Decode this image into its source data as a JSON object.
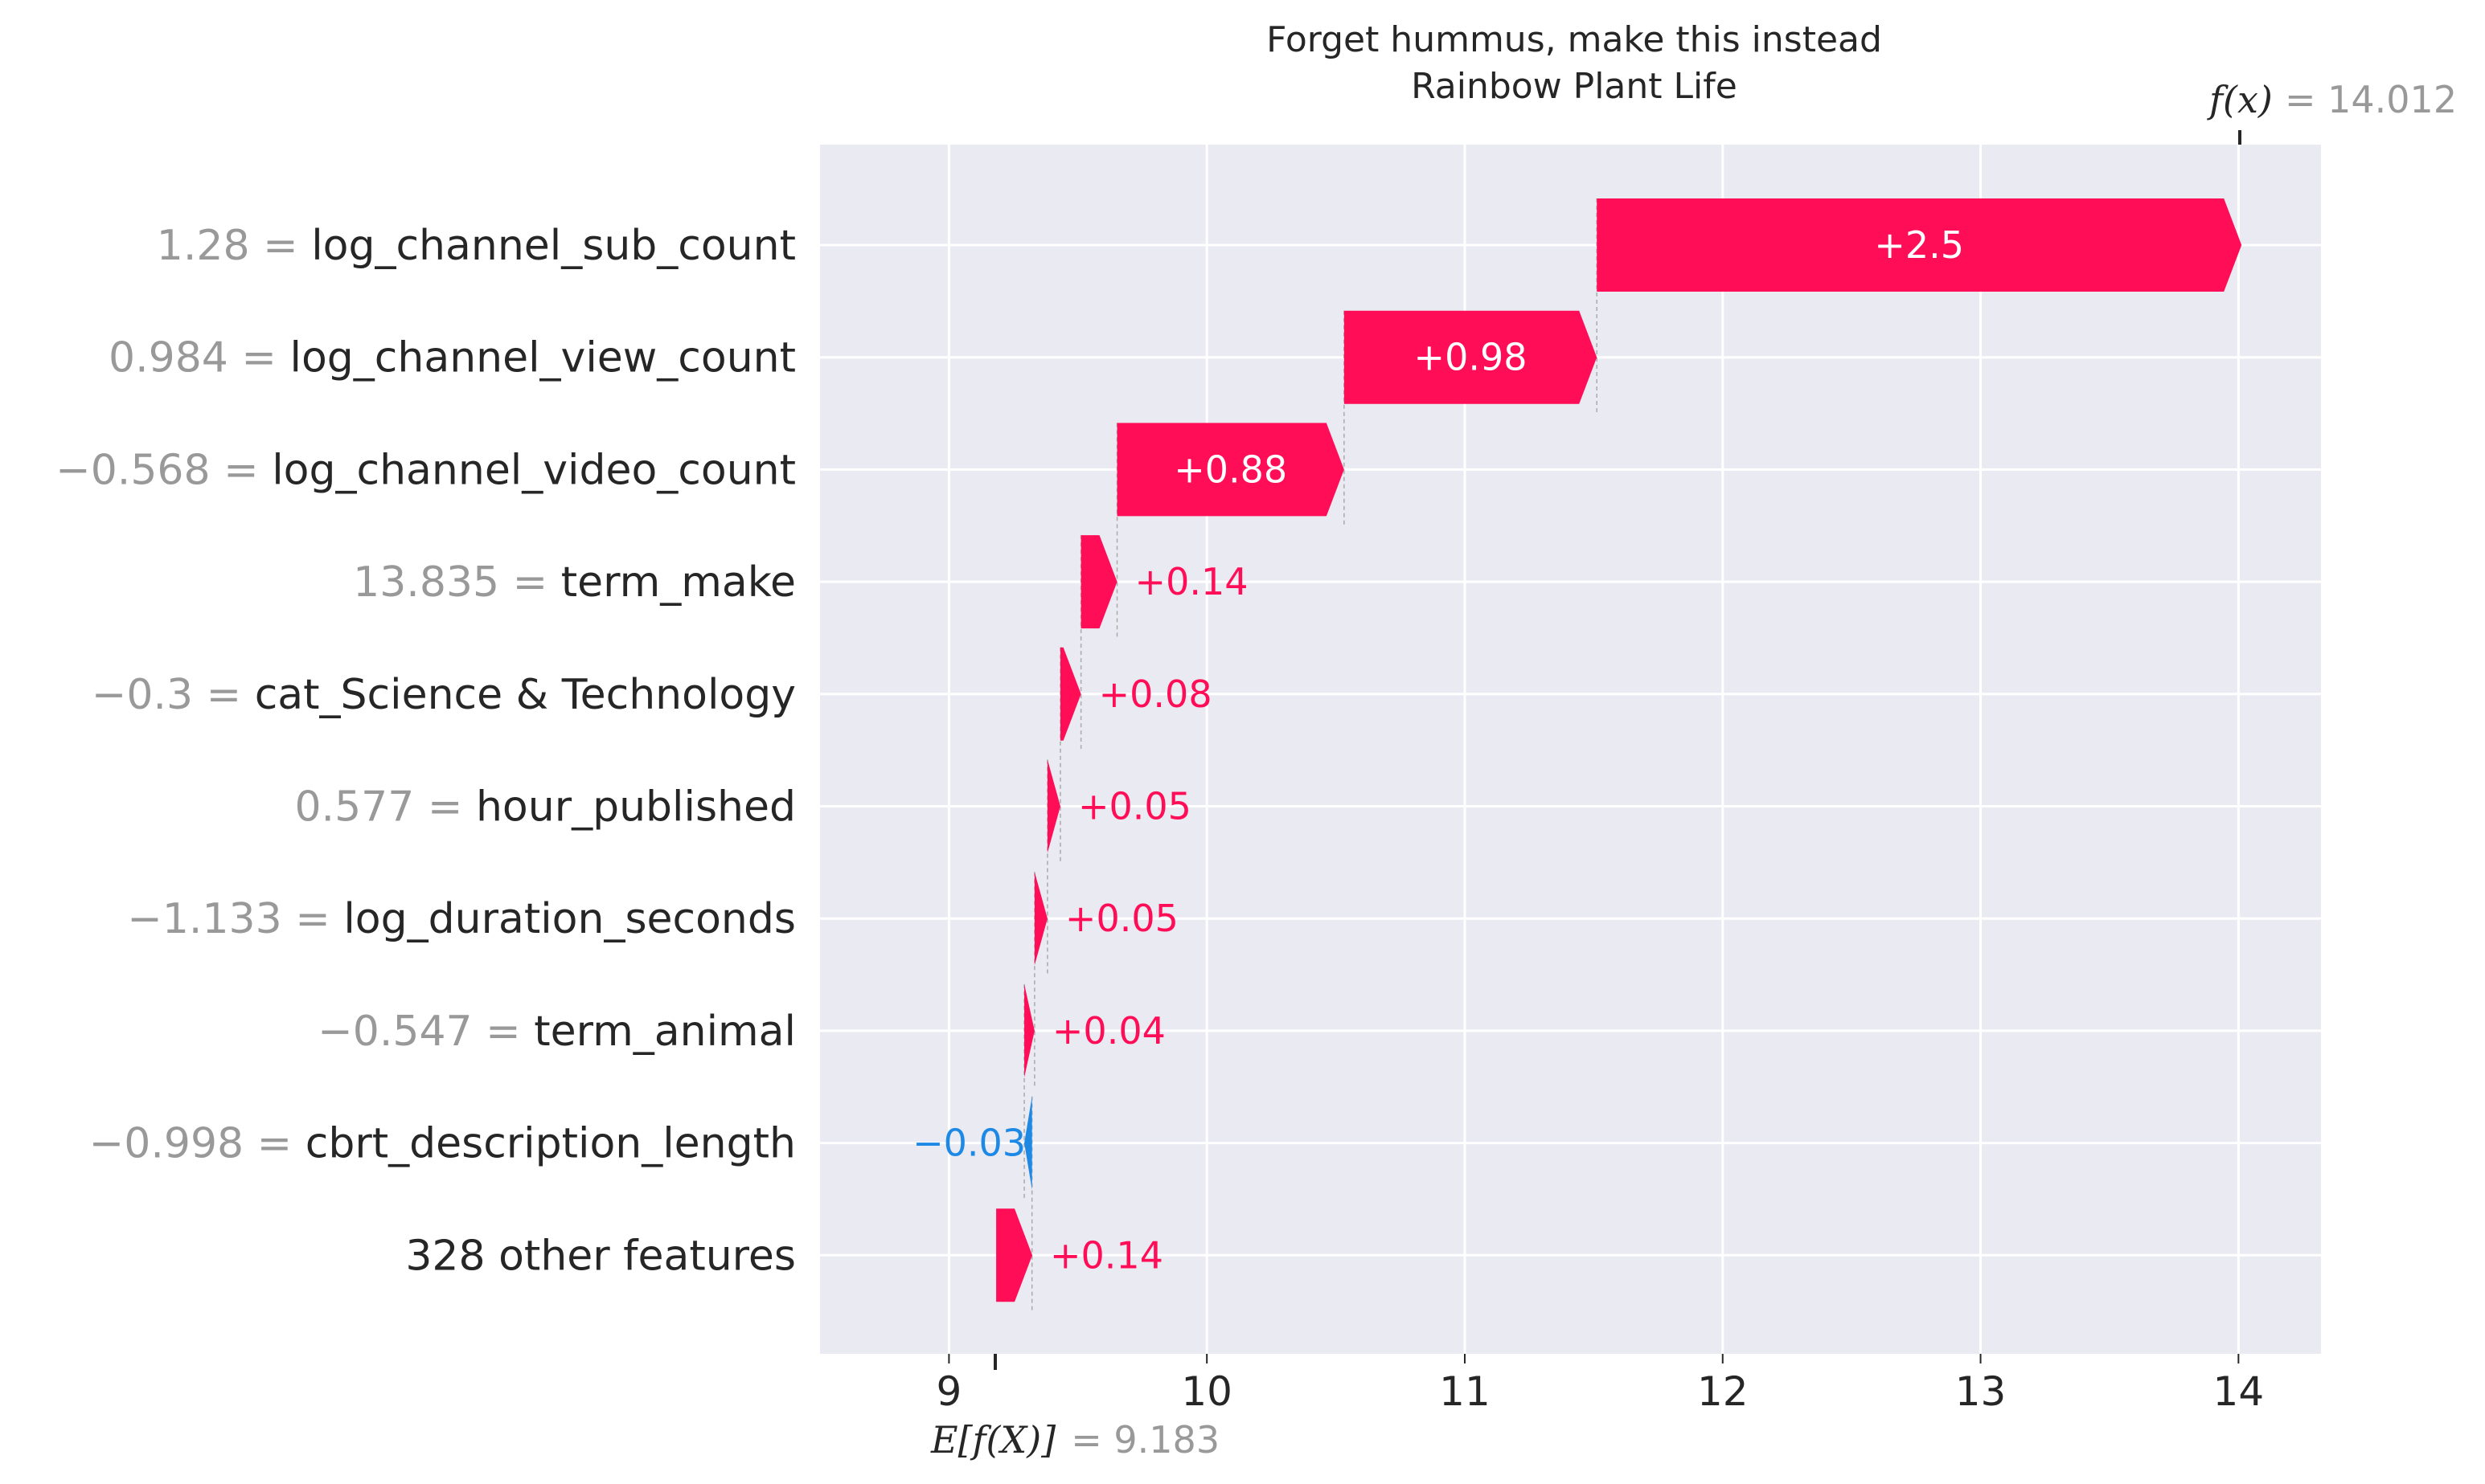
{
  "chart_data": {
    "type": "waterfall",
    "title": "Forget hummus, make this instead",
    "subtitle": "Rainbow Plant Life",
    "base_value": 9.183,
    "final_value": 14.012,
    "base_label": "E[f(X)]",
    "base_value_text": "= 9.183",
    "final_label": "f(x)",
    "final_value_text": "= 14.012",
    "xlim": [
      8.5,
      14.32
    ],
    "xticks": [
      9,
      10,
      11,
      12,
      13,
      14
    ],
    "xtick_labels": [
      "9",
      "10",
      "11",
      "12",
      "13",
      "14"
    ],
    "grid": true,
    "positive_color": "#ff0d57",
    "negative_color": "#1e88e5",
    "features": [
      {
        "value_text": "1.28 = ",
        "name": "log_channel_sub_count",
        "start": 11.512,
        "contribution": 2.5,
        "label": "+2.5"
      },
      {
        "value_text": "0.984 = ",
        "name": "log_channel_view_count",
        "start": 10.532,
        "contribution": 0.98,
        "label": "+0.98"
      },
      {
        "value_text": "−0.568 = ",
        "name": "log_channel_video_count",
        "start": 9.652,
        "contribution": 0.88,
        "label": "+0.88"
      },
      {
        "value_text": "13.835 = ",
        "name": "term_make",
        "start": 9.512,
        "contribution": 0.14,
        "label": "+0.14"
      },
      {
        "value_text": "−0.3 = ",
        "name": "cat_Science & Technology",
        "start": 9.432,
        "contribution": 0.08,
        "label": "+0.08"
      },
      {
        "value_text": "0.577 = ",
        "name": "hour_published",
        "start": 9.382,
        "contribution": 0.05,
        "label": "+0.05"
      },
      {
        "value_text": "−1.133 = ",
        "name": "log_duration_seconds",
        "start": 9.332,
        "contribution": 0.05,
        "label": "+0.05"
      },
      {
        "value_text": "−0.547 = ",
        "name": "term_animal",
        "start": 9.292,
        "contribution": 0.04,
        "label": "+0.04"
      },
      {
        "value_text": "−0.998 = ",
        "name": "cbrt_description_length",
        "start": 9.322,
        "contribution": -0.03,
        "label": "−0.03"
      },
      {
        "value_text": "",
        "name": "328 other features",
        "start": 9.183,
        "contribution": 0.14,
        "label": "+0.14"
      }
    ]
  }
}
